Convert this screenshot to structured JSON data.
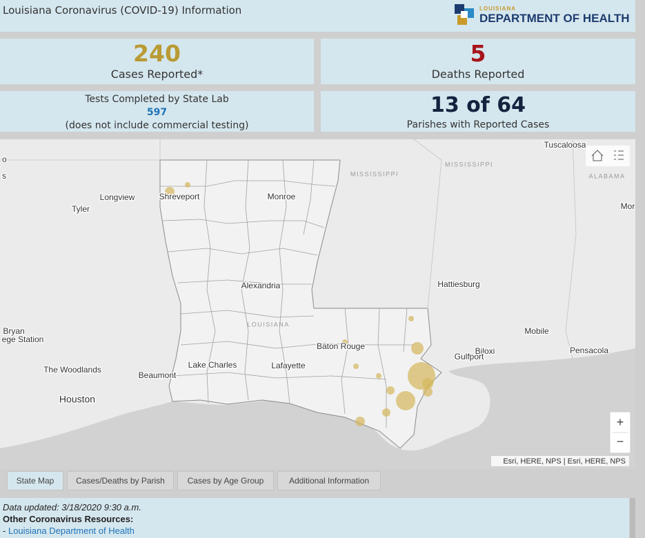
{
  "header": {
    "title": "Louisiana Coronavirus (COVID-19) Information",
    "logo_top": "LOUISIANA",
    "logo_main": "DEPARTMENT OF HEALTH"
  },
  "stats": [
    {
      "value": 240,
      "label": "Cases Reported*"
    },
    {
      "value": 5,
      "label": "Deaths Reported"
    },
    {
      "label": "Tests Completed by State Lab",
      "value": 597,
      "note": "(does not include commercial testing)"
    },
    {
      "value": "13 of 64",
      "label": "Parishes with Reported Cases"
    }
  ],
  "map": {
    "labels": [
      "Tuscaloosa",
      "MISSISSIPPI",
      "MISSISSIPPI",
      "ALABAMA",
      "Mor",
      "o",
      "s",
      "Longview",
      "Shreveport",
      "Tyler",
      "Monroe",
      "Alexandria",
      "Hattiesburg",
      "LOUISIANA",
      "Bryan",
      "ege Station",
      "Baton Rouge",
      "Mobile",
      "Biloxi",
      "Gulfport",
      "Pensacola",
      "Lake Charles",
      "Lafayette",
      "The Woodlands",
      "Beaumont",
      "Houston"
    ],
    "attribution": "Esri, HERE, NPS | Esri, HERE, NPS",
    "zoom_in": "+",
    "zoom_out": "−"
  },
  "tabs": [
    "State Map",
    "Cases/Deaths by Parish",
    "Cases by Age Group",
    "Additional Information"
  ],
  "footer": {
    "updated": "Data updated: 3/18/2020 9:30 a.m.",
    "resources_title": "Other Coronavirus Resources:",
    "links": [
      {
        "prefix": "-",
        "label": "Louisiana Department of Health"
      }
    ]
  }
}
